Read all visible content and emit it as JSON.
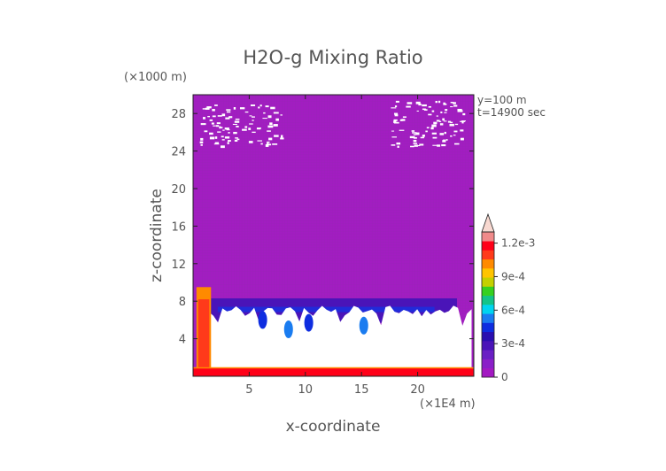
{
  "chart_data": {
    "type": "heatmap",
    "title": "H2O-g Mixing Ratio",
    "xlabel": "x-coordinate",
    "ylabel": "z-coordinate",
    "x_unit": "(×1E4 m)",
    "y_unit": "(×1000 m)",
    "annotations": [
      "y=100 m",
      "t=14900 sec"
    ],
    "xlim": [
      0,
      25
    ],
    "ylim": [
      0,
      30
    ],
    "x_ticks": [
      5,
      10,
      15,
      20
    ],
    "y_ticks": [
      4,
      8,
      12,
      16,
      20,
      24,
      28
    ],
    "colorbar": {
      "min": 0,
      "max": 0.0013,
      "extend": "max",
      "labels": [
        {
          "value": 0,
          "text": "0"
        },
        {
          "value": 0.0003,
          "text": "3e-4"
        },
        {
          "value": 0.0006,
          "text": "6e-4"
        },
        {
          "value": 0.0009,
          "text": "9e-4"
        },
        {
          "value": 0.0012,
          "text": "1.2e-3"
        }
      ],
      "colors": [
        "#a319c2",
        "#8a1fc8",
        "#6a1fc4",
        "#4a14b8",
        "#2a0fb0",
        "#0e2de0",
        "#1a7cf0",
        "#00d4ef",
        "#13c488",
        "#36d020",
        "#c4d000",
        "#ffc400",
        "#ff8a00",
        "#ff3a1a",
        "#ff0018",
        "#f08a8a"
      ],
      "extend_color": "#f8d8d0"
    },
    "regions": {
      "upper_background": {
        "x": [
          0,
          25
        ],
        "z": [
          8.2,
          30
        ],
        "value": 2e-05
      },
      "moist_band": {
        "x": [
          0.7,
          23.5
        ],
        "z": [
          5.7,
          8.3
        ],
        "value": 0.00025
      },
      "dry_white_area": {
        "x": [
          0.6,
          24.8
        ],
        "z": [
          0.6,
          7.0
        ],
        "value": "none"
      },
      "surface_layer": {
        "x": [
          0,
          25
        ],
        "z": [
          0,
          0.9
        ],
        "value": 0.0012
      },
      "left_column": {
        "x": [
          0.3,
          1.6
        ],
        "z": [
          0,
          9.5
        ],
        "value": 0.0011
      },
      "white_patches_upper": [
        {
          "x": [
            0.5,
            8.0
          ],
          "z": [
            24.5,
            29.0
          ]
        },
        {
          "x": [
            17.5,
            24.0
          ],
          "z": [
            24.5,
            29.5
          ]
        }
      ]
    }
  }
}
